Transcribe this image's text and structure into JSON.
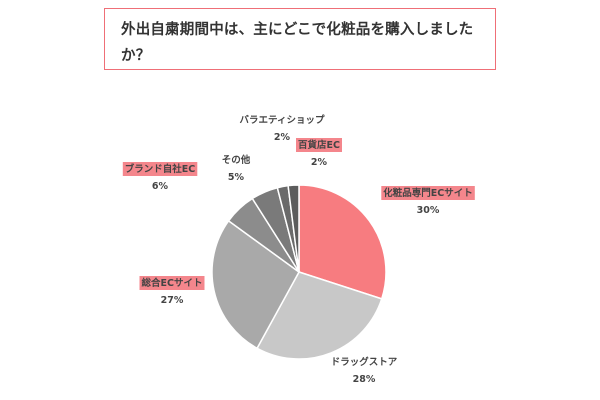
{
  "title": "外出自粛期間中は、主にどこで化粧品を購入しましたか？",
  "chart_data": {
    "type": "pie",
    "title": "外出自粛期間中は、主にどこで化粧品を購入しましたか？",
    "unit": "%",
    "slices": [
      {
        "label": "化粧品専門ECサイト",
        "value": 30,
        "value_label": "30%",
        "color": "#f77c80",
        "highlight": true
      },
      {
        "label": "ドラッグストア",
        "value": 28,
        "value_label": "28%",
        "color": "#c8c8c8",
        "highlight": false
      },
      {
        "label": "総合ECサイト",
        "value": 27,
        "value_label": "27%",
        "color": "#a9a9a9",
        "highlight": true
      },
      {
        "label": "ブランド自社EC",
        "value": 6,
        "value_label": "6%",
        "color": "#8c8c8c",
        "highlight": true
      },
      {
        "label": "その他",
        "value": 5,
        "value_label": "5%",
        "color": "#7a7a7a",
        "highlight": false
      },
      {
        "label": "バラエティショップ",
        "value": 2,
        "value_label": "2%",
        "color": "#6a6a6a",
        "highlight": false
      },
      {
        "label": "百貨店EC",
        "value": 2,
        "value_label": "2%",
        "color": "#5c5c5c",
        "highlight": true
      }
    ]
  }
}
